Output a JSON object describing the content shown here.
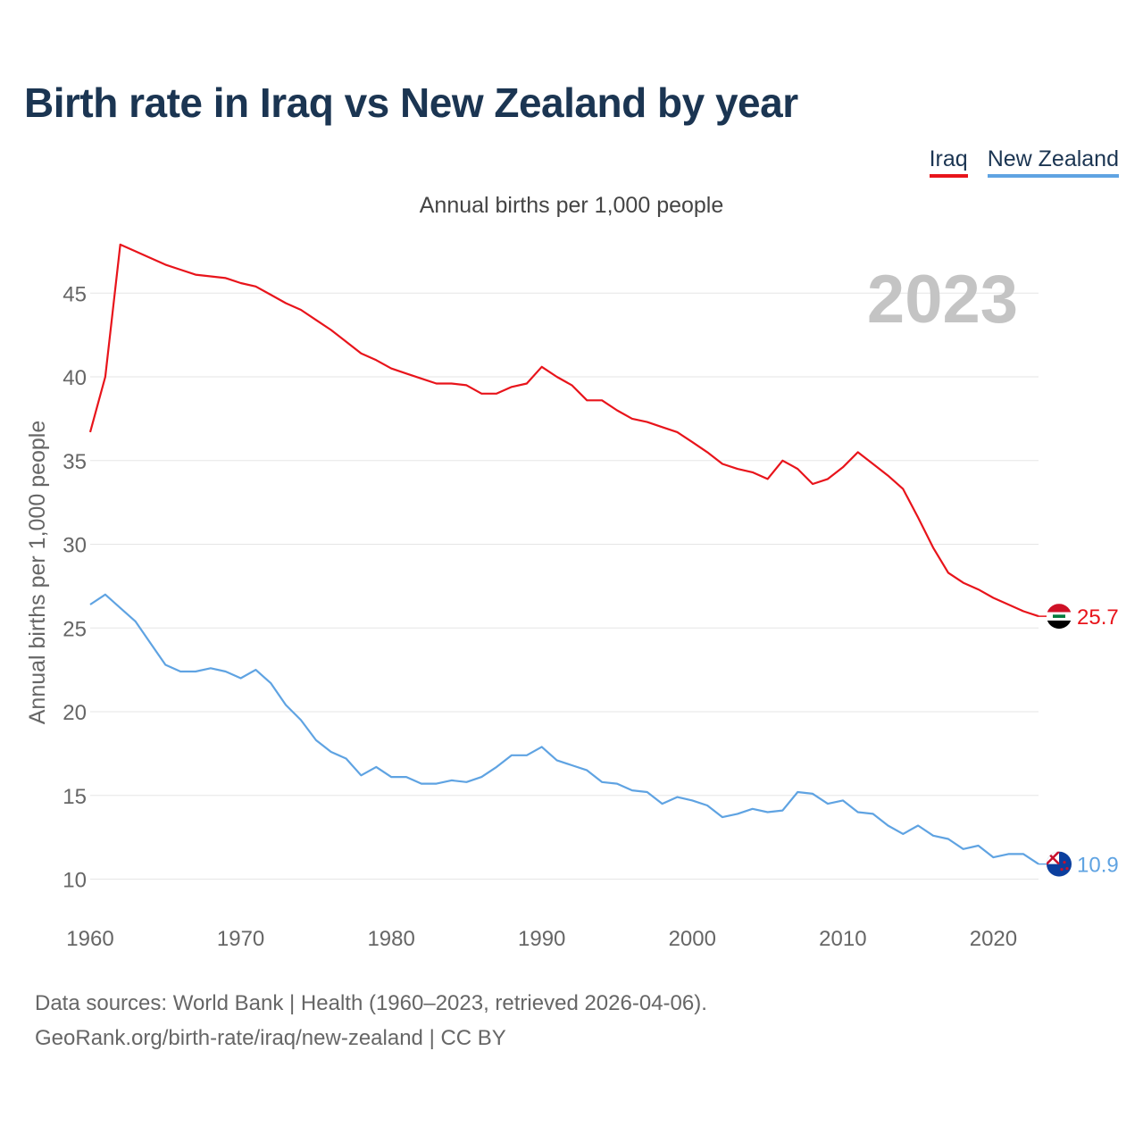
{
  "title": "Birth rate in Iraq vs New Zealand by year",
  "subtitle": "Annual births per 1,000 people",
  "year_label": "2023",
  "footer": {
    "line1": "Data sources: World Bank | Health (1960–2023, retrieved 2026-04-06).",
    "line2": "GeoRank.org/birth-rate/iraq/new-zealand | CC BY"
  },
  "chart_data": {
    "type": "line",
    "title": "Birth rate in Iraq vs New Zealand by year",
    "subtitle": "Annual births per 1,000 people",
    "xlabel": "",
    "ylabel": "Annual births per 1,000 people",
    "xlim": [
      1960,
      2023
    ],
    "ylim": [
      8,
      48
    ],
    "yticks": [
      10,
      15,
      20,
      25,
      30,
      35,
      40,
      45
    ],
    "xticks": [
      1960,
      1970,
      1980,
      1990,
      2000,
      2010,
      2020
    ],
    "grid": true,
    "legend_position": "top-right",
    "x": [
      1960,
      1961,
      1962,
      1963,
      1964,
      1965,
      1966,
      1967,
      1968,
      1969,
      1970,
      1971,
      1972,
      1973,
      1974,
      1975,
      1976,
      1977,
      1978,
      1979,
      1980,
      1981,
      1982,
      1983,
      1984,
      1985,
      1986,
      1987,
      1988,
      1989,
      1990,
      1991,
      1992,
      1993,
      1994,
      1995,
      1996,
      1997,
      1998,
      1999,
      2000,
      2001,
      2002,
      2003,
      2004,
      2005,
      2006,
      2007,
      2008,
      2009,
      2010,
      2011,
      2012,
      2013,
      2014,
      2015,
      2016,
      2017,
      2018,
      2019,
      2020,
      2021,
      2022,
      2023
    ],
    "series": [
      {
        "name": "Iraq",
        "color": "#e8141b",
        "end_label": "25.7",
        "values": [
          36.7,
          40.0,
          47.9,
          47.5,
          47.1,
          46.7,
          46.4,
          46.1,
          46.0,
          45.9,
          45.6,
          45.4,
          44.9,
          44.4,
          44.0,
          43.4,
          42.8,
          42.1,
          41.4,
          41.0,
          40.5,
          40.2,
          39.9,
          39.6,
          39.6,
          39.5,
          39.0,
          39.0,
          39.4,
          39.6,
          40.6,
          40.0,
          39.5,
          38.6,
          38.6,
          38.0,
          37.5,
          37.3,
          37.0,
          36.7,
          36.1,
          35.5,
          34.8,
          34.5,
          34.3,
          33.9,
          35.0,
          34.5,
          33.6,
          33.9,
          34.6,
          35.5,
          34.8,
          34.1,
          33.3,
          31.6,
          29.8,
          28.3,
          27.7,
          27.3,
          26.8,
          26.4,
          26.0,
          25.7
        ]
      },
      {
        "name": "New Zealand",
        "color": "#5fa3e2",
        "end_label": "10.9",
        "values": [
          26.4,
          27.0,
          26.2,
          25.4,
          24.1,
          22.8,
          22.4,
          22.4,
          22.6,
          22.4,
          22.0,
          22.5,
          21.7,
          20.4,
          19.5,
          18.3,
          17.6,
          17.2,
          16.2,
          16.7,
          16.1,
          16.1,
          15.7,
          15.7,
          15.9,
          15.8,
          16.1,
          16.7,
          17.4,
          17.4,
          17.9,
          17.1,
          16.8,
          16.5,
          15.8,
          15.7,
          15.3,
          15.2,
          14.5,
          14.9,
          14.7,
          14.4,
          13.7,
          13.9,
          14.2,
          14.0,
          14.1,
          15.2,
          15.1,
          14.5,
          14.7,
          14.0,
          13.9,
          13.2,
          12.7,
          13.2,
          12.6,
          12.4,
          11.8,
          12.0,
          11.3,
          11.5,
          11.5,
          10.9
        ]
      }
    ]
  }
}
